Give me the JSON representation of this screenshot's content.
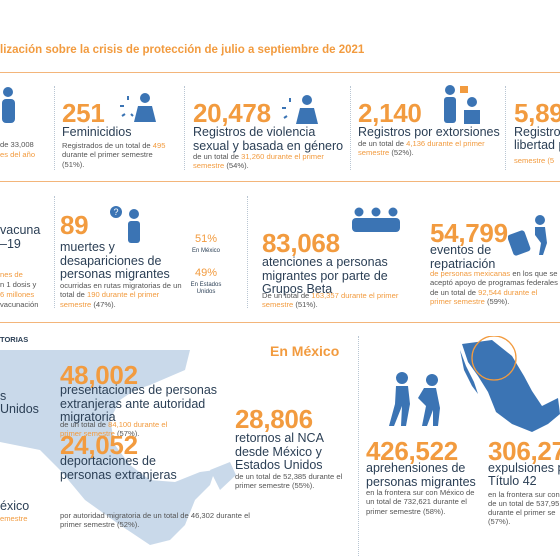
{
  "header": {
    "title": "lización sobre la crisis de protección de julio a septiembre de 2021"
  },
  "row1": {
    "left": {
      "lines": [
        "de 33,008",
        "es del año"
      ]
    },
    "femicides": {
      "number": "251",
      "title": "Feminicidios",
      "note": [
        "Registrados de un total de ",
        "495",
        " durante el primer semestre (51%)."
      ]
    },
    "sexual_violence": {
      "number": "20,478",
      "title": "Registros de violencia sexual y basada en género",
      "note": [
        "de un total de ",
        "31,260 durante el primer semestre",
        " (54%)."
      ]
    },
    "extortion": {
      "number": "2,140",
      "title": "Registros por extorsiones",
      "note": [
        "de un total de ",
        "4,136 durante el primer semestre",
        " (52%)."
      ]
    },
    "liberty": {
      "number": "5,89",
      "title": [
        "Registros",
        "libertad p"
      ],
      "note": "semestre (5"
    }
  },
  "row2": {
    "left": {
      "title": [
        "vacuna",
        "–19"
      ],
      "lines": [
        "nes de",
        "n 1 dosis y",
        "6 millones",
        "vacunación"
      ]
    },
    "deaths": {
      "number": "89",
      "title": "muertes y desapariciones de personas migrantes",
      "note": [
        "ocurridas en rutas migratorias de un total de ",
        "190 durante el primer semestre",
        " (47%)."
      ],
      "split": [
        {
          "pct": "51%",
          "label": "En México"
        },
        {
          "pct": "49%",
          "label": "En Estados Unidos"
        }
      ]
    },
    "beta": {
      "number": "83,068",
      "title": "atenciones a personas migrantes por parte de Grupos Beta",
      "note": [
        "De un total de ",
        "163,357 durante el primer semestre",
        " (51%)."
      ]
    },
    "repatriation": {
      "number": "54,799",
      "title": "eventos de repatriación",
      "note": [
        "de personas mexicanas",
        " en los que se aceptó apoyo de programas federales de un total de ",
        "92,544 durante el primer semestre",
        " (59%)."
      ]
    }
  },
  "row3": {
    "label": "TORIAS",
    "left": {
      "lines": [
        "s",
        "Unidos",
        "éxico",
        "emestre"
      ]
    },
    "section": "En México",
    "presentations": {
      "number": "48,002",
      "title": "presentaciones de personas extranjeras ante autoridad migratoria",
      "note": [
        "de un total de ",
        "84,100 durante el primer semestre",
        " (57%)."
      ]
    },
    "deportations": {
      "number": "24,052",
      "title": "deportaciones de personas extranjeras",
      "note": "por autoridad migratoria de un total de 46,302 durante el primer semestre (52%)."
    },
    "returns": {
      "number": "28,806",
      "title": "retornos al NCA desde México y Estados Unidos",
      "note": "de un total de 52,385 durante el primer semestre (55%)."
    },
    "apprehensions": {
      "number": "426,522",
      "title": "aprehensiones de personas migrantes",
      "note": "en la frontera sur con México de un total de 732,621 durante el primer semestre (58%)."
    },
    "expulsions": {
      "number": "306,27",
      "title": [
        "expulsiones p",
        "Título 42"
      ],
      "note": [
        "en la frontera sur con",
        "de un total de 537,95",
        "durante el primer se",
        "(57%)."
      ]
    }
  }
}
